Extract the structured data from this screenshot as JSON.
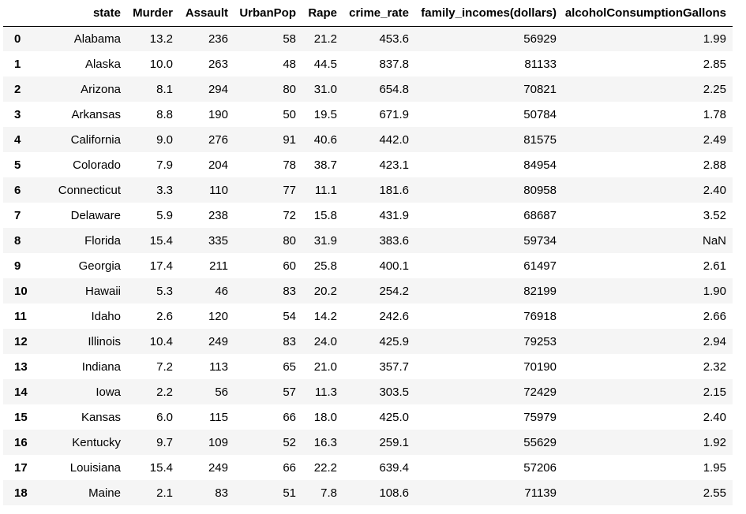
{
  "table": {
    "index_header": "",
    "columns": [
      "state",
      "Murder",
      "Assault",
      "UrbanPop",
      "Rape",
      "crime_rate",
      "family_incomes(dollars)",
      "alcoholConsumptionGallons"
    ],
    "rows": [
      {
        "index": "0",
        "cells": [
          "Alabama",
          "13.2",
          "236",
          "58",
          "21.2",
          "453.6",
          "56929",
          "1.99"
        ]
      },
      {
        "index": "1",
        "cells": [
          "Alaska",
          "10.0",
          "263",
          "48",
          "44.5",
          "837.8",
          "81133",
          "2.85"
        ]
      },
      {
        "index": "2",
        "cells": [
          "Arizona",
          "8.1",
          "294",
          "80",
          "31.0",
          "654.8",
          "70821",
          "2.25"
        ]
      },
      {
        "index": "3",
        "cells": [
          "Arkansas",
          "8.8",
          "190",
          "50",
          "19.5",
          "671.9",
          "50784",
          "1.78"
        ]
      },
      {
        "index": "4",
        "cells": [
          "California",
          "9.0",
          "276",
          "91",
          "40.6",
          "442.0",
          "81575",
          "2.49"
        ]
      },
      {
        "index": "5",
        "cells": [
          "Colorado",
          "7.9",
          "204",
          "78",
          "38.7",
          "423.1",
          "84954",
          "2.88"
        ]
      },
      {
        "index": "6",
        "cells": [
          "Connecticut",
          "3.3",
          "110",
          "77",
          "11.1",
          "181.6",
          "80958",
          "2.40"
        ]
      },
      {
        "index": "7",
        "cells": [
          "Delaware",
          "5.9",
          "238",
          "72",
          "15.8",
          "431.9",
          "68687",
          "3.52"
        ]
      },
      {
        "index": "8",
        "cells": [
          "Florida",
          "15.4",
          "335",
          "80",
          "31.9",
          "383.6",
          "59734",
          "NaN"
        ]
      },
      {
        "index": "9",
        "cells": [
          "Georgia",
          "17.4",
          "211",
          "60",
          "25.8",
          "400.1",
          "61497",
          "2.61"
        ]
      },
      {
        "index": "10",
        "cells": [
          "Hawaii",
          "5.3",
          "46",
          "83",
          "20.2",
          "254.2",
          "82199",
          "1.90"
        ]
      },
      {
        "index": "11",
        "cells": [
          "Idaho",
          "2.6",
          "120",
          "54",
          "14.2",
          "242.6",
          "76918",
          "2.66"
        ]
      },
      {
        "index": "12",
        "cells": [
          "Illinois",
          "10.4",
          "249",
          "83",
          "24.0",
          "425.9",
          "79253",
          "2.94"
        ]
      },
      {
        "index": "13",
        "cells": [
          "Indiana",
          "7.2",
          "113",
          "65",
          "21.0",
          "357.7",
          "70190",
          "2.32"
        ]
      },
      {
        "index": "14",
        "cells": [
          "Iowa",
          "2.2",
          "56",
          "57",
          "11.3",
          "303.5",
          "72429",
          "2.15"
        ]
      },
      {
        "index": "15",
        "cells": [
          "Kansas",
          "6.0",
          "115",
          "66",
          "18.0",
          "425.0",
          "75979",
          "2.40"
        ]
      },
      {
        "index": "16",
        "cells": [
          "Kentucky",
          "9.7",
          "109",
          "52",
          "16.3",
          "259.1",
          "55629",
          "1.92"
        ]
      },
      {
        "index": "17",
        "cells": [
          "Louisiana",
          "15.4",
          "249",
          "66",
          "22.2",
          "639.4",
          "57206",
          "1.95"
        ]
      },
      {
        "index": "18",
        "cells": [
          "Maine",
          "2.1",
          "83",
          "51",
          "7.8",
          "108.6",
          "71139",
          "2.55"
        ]
      }
    ]
  }
}
